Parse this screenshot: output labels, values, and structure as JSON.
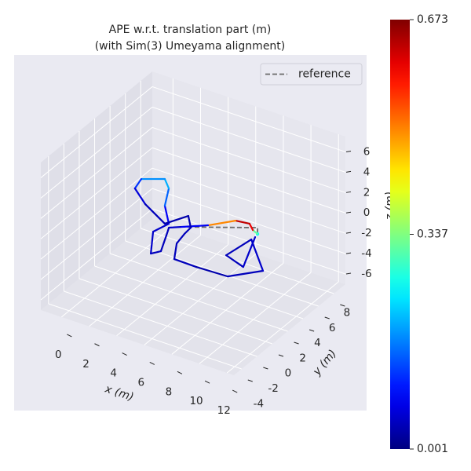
{
  "chart_data": {
    "type": "line3d",
    "title": "APE w.r.t. translation part (m)",
    "subtitle": "(with Sim(3) Umeyama alignment)",
    "xlabel": "x (m)",
    "ylabel": "y (m)",
    "zlabel": "z (m)",
    "xlim": [
      -1.5,
      12.5
    ],
    "ylim": [
      -5,
      9.5
    ],
    "zlim": [
      -7,
      7.5
    ],
    "xticks": [
      0,
      2,
      4,
      6,
      8,
      10,
      12
    ],
    "yticks": [
      -4,
      -2,
      0,
      2,
      4,
      6,
      8
    ],
    "zticks": [
      -6,
      -4,
      -2,
      0,
      2,
      4,
      6
    ],
    "grid": true,
    "legend": "upper right",
    "colormap": "jet",
    "clim": [
      0.001,
      0.673
    ],
    "colorbar_ticks": [
      0.001,
      0.337,
      0.673
    ],
    "series": [
      {
        "name": "reference",
        "color": "#6b6b6b",
        "linestyle": "dashed",
        "x": [
          4.92,
          8.92,
          9.31
        ],
        "y": [
          1.65,
          4.5,
          3.79
        ],
        "z": [
          0,
          0,
          0
        ]
      },
      {
        "x": [
          9.31,
          8.83,
          8.26,
          7.35,
          6.23,
          4.92,
          4.37,
          4.73,
          5.44,
          5.07,
          3.81,
          4.12,
          2.78,
          1.9,
          1.1,
          -0.1,
          0.16,
          1.68,
          3.91,
          4.63,
          5.49,
          5.56,
          5.76,
          6.62,
          8.24,
          10.45,
          11.91,
          9.34,
          9.04,
          10.65,
          9.39
        ],
        "y": [
          3.79,
          4.05,
          4.64,
          4.45,
          2.88,
          1.65,
          1.13,
          0.15,
          -1.83,
          -2.48,
          0.08,
          1.57,
          3.45,
          5.55,
          6.46,
          5.56,
          4.26,
          2.88,
          1.42,
          3.19,
          1.96,
          1.01,
          -0.35,
          -2.21,
          -2.26,
          -2.13,
          -0.16,
          2.93,
          0.2,
          -0.47,
          3.34
        ],
        "z": [
          0,
          0,
          0,
          0,
          0,
          0,
          0,
          0,
          0,
          0,
          0,
          0,
          0,
          0,
          0,
          0,
          0,
          0,
          0,
          0,
          0,
          0,
          0,
          0,
          0,
          0,
          0,
          0,
          0,
          0,
          0
        ],
        "error": [
          0.25,
          0.32,
          0.6,
          0.63,
          0.5,
          0.08,
          0.05,
          0.04,
          0.04,
          0.04,
          0.05,
          0.05,
          0.08,
          0.15,
          0.2,
          0.18,
          0.12,
          0.06,
          0.04,
          0.03,
          0.03,
          0.04,
          0.04,
          0.04,
          0.04,
          0.03,
          0.04,
          0.05,
          0.04,
          0.04,
          0.05
        ]
      }
    ]
  }
}
